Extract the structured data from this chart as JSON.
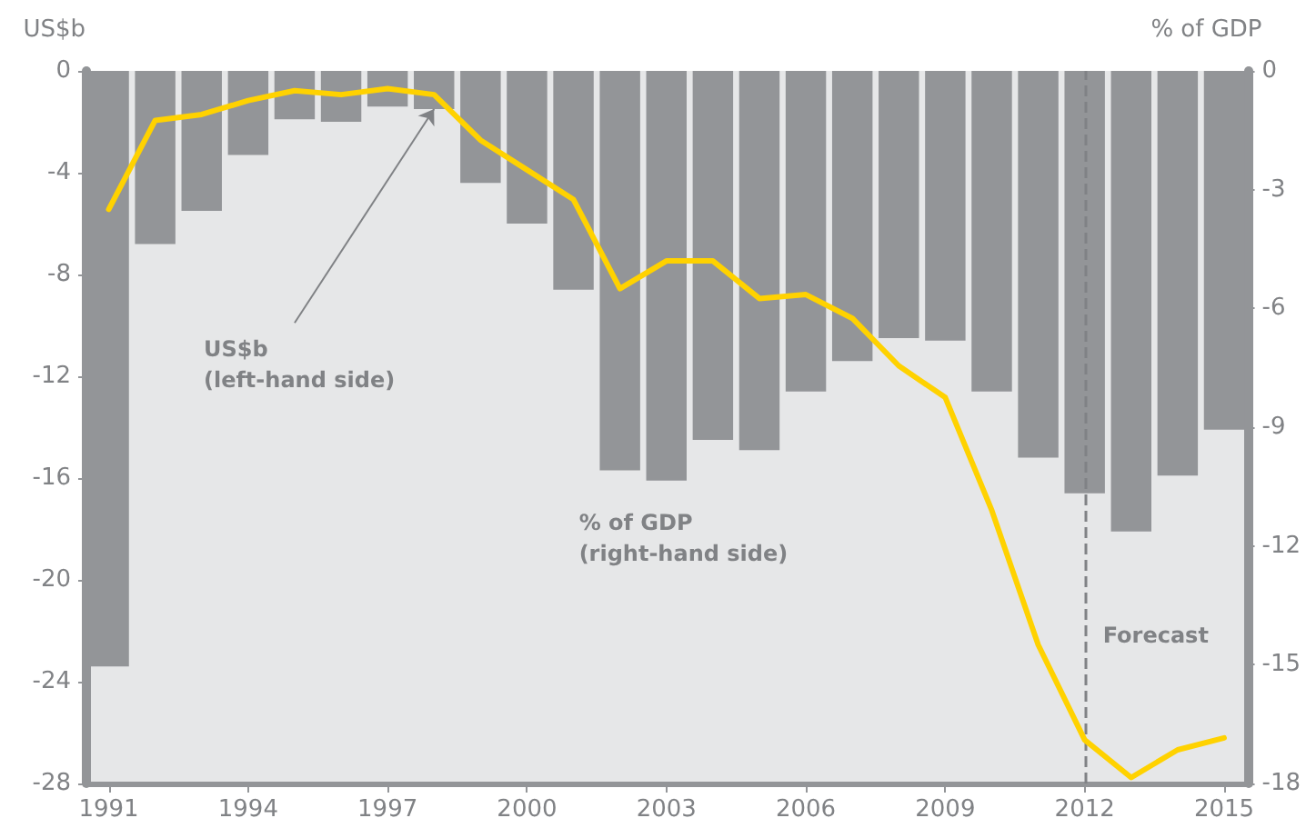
{
  "chart_data": {
    "type": "bar",
    "ylabel": "US$b",
    "y2label": "% of GDP",
    "x": [
      1991,
      1992,
      1993,
      1994,
      1995,
      1996,
      1997,
      1998,
      1999,
      2000,
      2001,
      2002,
      2003,
      2004,
      2005,
      2006,
      2007,
      2008,
      2009,
      2010,
      2011,
      2012,
      2013,
      2014,
      2015
    ],
    "xlim": [
      1990.5,
      2015.5
    ],
    "xticks": [
      1991,
      1994,
      1997,
      2000,
      2003,
      2006,
      2009,
      2012,
      2015
    ],
    "ylim": [
      -28,
      0
    ],
    "yticks": [
      -28,
      -24,
      -20,
      -16,
      -12,
      -8,
      -4,
      0
    ],
    "y2lim": [
      -18,
      0
    ],
    "y2ticks": [
      -18,
      -15,
      -12,
      -9,
      -6,
      -3,
      0
    ],
    "series": [
      {
        "color": "#939598",
        "values": [
          -23.4,
          -6.8,
          -5.5,
          -3.3,
          -1.9,
          -2.0,
          -1.4,
          -1.5,
          -4.4,
          -6.0,
          -8.6,
          -15.7,
          -16.1,
          -14.5,
          -14.9,
          -12.6,
          -11.4,
          -10.5,
          -10.6,
          -12.6,
          -15.2,
          -16.6,
          -18.1,
          -15.9,
          -14.1
        ]
      },
      {
        "type": "line",
        "axis": "y2",
        "color": "#ffd200",
        "values": [
          -3.5,
          -1.25,
          -1.1,
          -0.75,
          -0.5,
          -0.6,
          -0.45,
          -0.6,
          -1.75,
          -2.5,
          -3.25,
          -5.5,
          -4.8,
          -4.8,
          -5.75,
          -5.65,
          -6.25,
          -7.45,
          -8.25,
          -11.1,
          -14.5,
          -16.9,
          -17.85,
          -17.15,
          -16.85
        ]
      }
    ],
    "ref_lines": [
      {
        "axis": "x",
        "value": 2012,
        "label": "Forecast",
        "color": "#808285",
        "line_style": "dashed"
      }
    ],
    "annotations": [
      {
        "text": "US$b\n(left-hand side)",
        "x": 1998,
        "y": -1.5
      },
      "% of GDP\n(right-hand side)"
    ],
    "grid": false,
    "marker": "none",
    "line_style": "solid"
  }
}
